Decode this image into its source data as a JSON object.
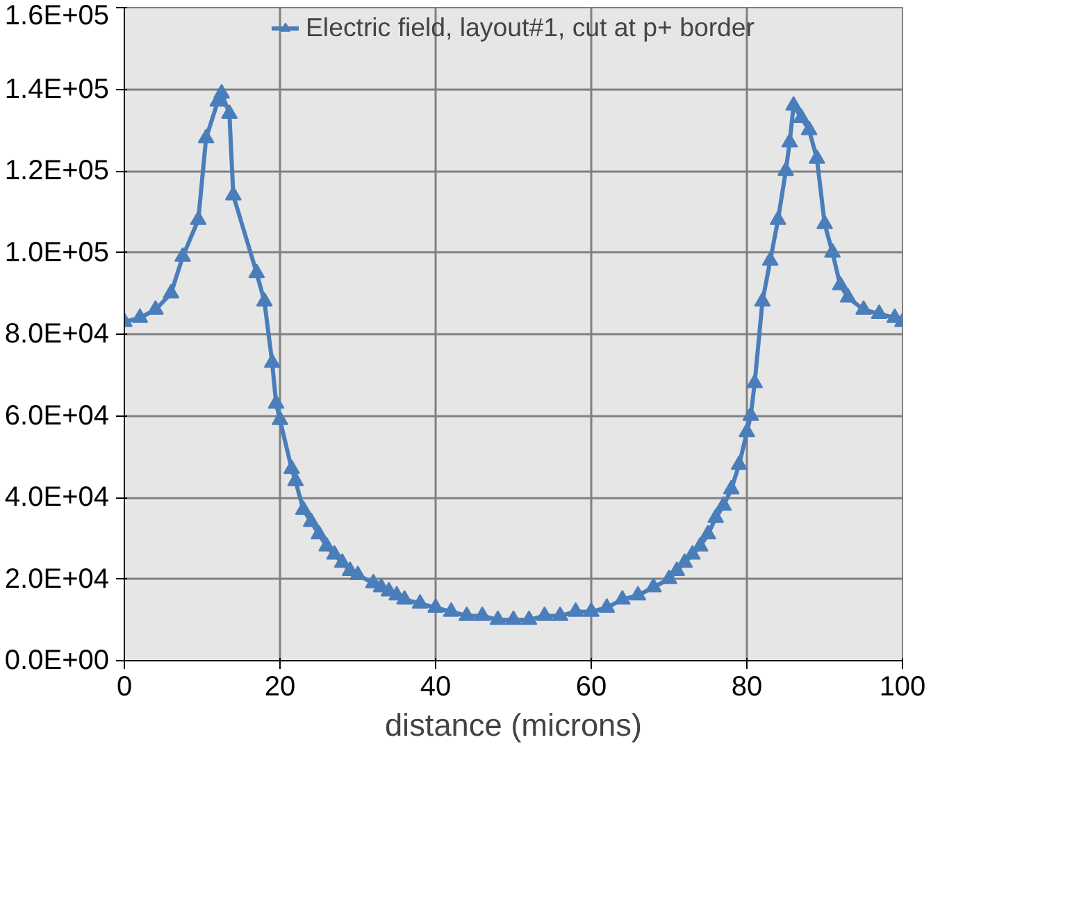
{
  "chart_data": {
    "type": "line",
    "xlabel": "distance (microns)",
    "x": [
      0,
      2,
      4,
      6,
      7.5,
      9.5,
      10.5,
      12,
      12.5,
      13.5,
      14,
      17,
      18,
      19,
      19.5,
      20,
      21.5,
      22,
      23,
      24,
      25,
      26,
      27,
      28,
      29,
      30,
      32,
      33,
      34,
      35,
      36,
      38,
      40,
      42,
      44,
      46,
      48,
      50,
      52,
      54,
      56,
      58,
      60,
      62,
      64,
      66,
      68,
      70,
      71,
      72,
      73,
      74,
      75,
      76,
      77,
      78,
      79,
      80,
      80.5,
      81,
      82,
      83,
      84,
      85,
      85.5,
      86,
      87,
      88,
      89,
      90,
      91,
      92,
      93,
      95,
      97,
      99,
      100
    ],
    "series": [
      {
        "name": "Electric field, layout#1, cut at p+ border",
        "color": "#4a7ebb",
        "values": [
          83000,
          84000,
          86000,
          90000,
          99000,
          108000,
          128000,
          137000,
          139000,
          134000,
          114000,
          95000,
          88000,
          73000,
          63000,
          59000,
          47000,
          44000,
          37000,
          34000,
          31000,
          28000,
          26000,
          24000,
          22000,
          21000,
          19000,
          18000,
          17000,
          16000,
          15000,
          14000,
          13000,
          12000,
          11000,
          11000,
          10000,
          10000,
          10000,
          11000,
          11000,
          12000,
          12000,
          13000,
          15000,
          16000,
          18000,
          20000,
          22000,
          24000,
          26000,
          28000,
          31000,
          35000,
          38000,
          42000,
          48000,
          56000,
          60000,
          68000,
          88000,
          98000,
          108000,
          120000,
          127000,
          136000,
          133000,
          130000,
          123000,
          107000,
          100000,
          92000,
          89000,
          86000,
          85000,
          84000,
          83000
        ]
      }
    ],
    "xlim": [
      0,
      100
    ],
    "xticks": [
      0,
      20,
      40,
      60,
      80,
      100
    ],
    "ylim": [
      0,
      160000
    ],
    "yticks": [
      {
        "value": 0,
        "label": "0.0E+00"
      },
      {
        "value": 20000,
        "label": "2.0E+04"
      },
      {
        "value": 40000,
        "label": "4.0E+04"
      },
      {
        "value": 60000,
        "label": "6.0E+04"
      },
      {
        "value": 80000,
        "label": "8.0E+04"
      },
      {
        "value": 100000,
        "label": "1.0E+05"
      },
      {
        "value": 120000,
        "label": "1.2E+05"
      },
      {
        "value": 140000,
        "label": "1.4E+05"
      },
      {
        "value": 160000,
        "label": "1.6E+05"
      }
    ],
    "grid": true,
    "legend": "top",
    "marker": "triangle",
    "line_style": "solid"
  }
}
